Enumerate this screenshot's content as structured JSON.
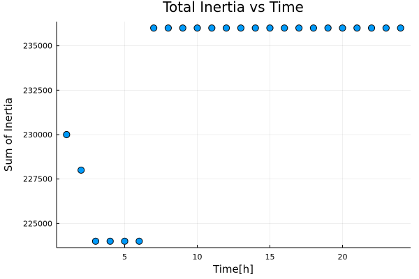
{
  "chart_data": {
    "type": "scatter",
    "title": "Total Inertia vs Time",
    "xlabel": "Time[h]",
    "ylabel": "Sum of Inertia",
    "x": [
      1,
      2,
      3,
      4,
      5,
      6,
      7,
      8,
      9,
      10,
      11,
      12,
      13,
      14,
      15,
      16,
      17,
      18,
      19,
      20,
      21,
      22,
      23,
      24
    ],
    "y": [
      230000,
      228000,
      224000,
      224000,
      224000,
      224000,
      236000,
      236000,
      236000,
      236000,
      236000,
      236000,
      236000,
      236000,
      236000,
      236000,
      236000,
      236000,
      236000,
      236000,
      236000,
      236000,
      236000,
      236000
    ],
    "xlim": [
      0.31,
      24.69
    ],
    "ylim": [
      223640,
      236360
    ],
    "xticks": [
      5,
      10,
      15,
      20
    ],
    "xtick_labels": [
      "5",
      "10",
      "15",
      "20"
    ],
    "yticks": [
      225000,
      227500,
      230000,
      232500,
      235000
    ],
    "ytick_labels": [
      "225000",
      "227500",
      "230000",
      "232500",
      "235000"
    ],
    "grid": true,
    "legend": false,
    "marker_color": "#009AFA",
    "marker_edge_color": "#000000"
  }
}
